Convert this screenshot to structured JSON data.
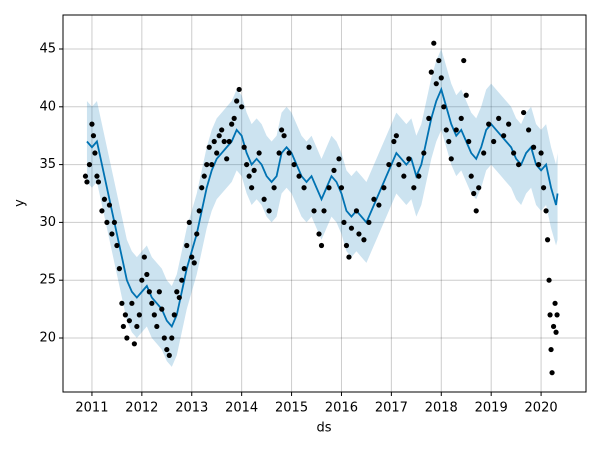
{
  "chart_data": {
    "type": "forecast",
    "xlabel": "ds",
    "ylabel": "y",
    "xlim": [
      2010.42,
      2020.9
    ],
    "ylim": [
      15.33,
      47.94
    ],
    "xticks": [
      2011,
      2012,
      2013,
      2014,
      2015,
      2016,
      2017,
      2018,
      2019,
      2020
    ],
    "yticks": [
      20,
      25,
      30,
      35,
      40,
      45
    ],
    "grid": true,
    "series": [
      {
        "type": "band",
        "color": "#0072B2",
        "x": [
          2010.9,
          2011.0,
          2011.1,
          2011.2,
          2011.3,
          2011.4,
          2011.5,
          2011.6,
          2011.7,
          2011.8,
          2011.9,
          2012.0,
          2012.1,
          2012.2,
          2012.3,
          2012.4,
          2012.5,
          2012.6,
          2012.7,
          2012.8,
          2012.9,
          2013.0,
          2013.1,
          2013.2,
          2013.3,
          2013.4,
          2013.5,
          2013.6,
          2013.7,
          2013.8,
          2013.9,
          2014.0,
          2014.1,
          2014.2,
          2014.3,
          2014.4,
          2014.5,
          2014.6,
          2014.7,
          2014.8,
          2014.9,
          2015.0,
          2015.1,
          2015.2,
          2015.3,
          2015.4,
          2015.5,
          2015.6,
          2015.7,
          2015.8,
          2015.9,
          2016.0,
          2016.1,
          2016.2,
          2016.3,
          2016.4,
          2016.5,
          2016.6,
          2016.7,
          2016.8,
          2016.9,
          2017.0,
          2017.1,
          2017.2,
          2017.3,
          2017.4,
          2017.5,
          2017.6,
          2017.7,
          2017.8,
          2017.9,
          2018.0,
          2018.1,
          2018.2,
          2018.3,
          2018.4,
          2018.5,
          2018.6,
          2018.7,
          2018.8,
          2018.9,
          2019.0,
          2019.1,
          2019.2,
          2019.3,
          2019.4,
          2019.5,
          2019.6,
          2019.7,
          2019.8,
          2019.9,
          2020.0,
          2020.1,
          2020.2,
          2020.3,
          2020.33
        ],
        "lower": [
          33.5,
          33,
          33.5,
          31.5,
          29.5,
          27.5,
          25.5,
          23.5,
          21.5,
          20.5,
          20,
          20.5,
          21,
          20,
          19.5,
          19,
          18,
          17.5,
          18.5,
          20.5,
          22.5,
          24,
          25.5,
          27.5,
          29.5,
          31,
          32,
          32.5,
          33,
          33.5,
          34.5,
          34,
          32.5,
          31.5,
          32,
          31.5,
          30.5,
          30,
          30.5,
          32.5,
          33,
          32.5,
          31.5,
          30.5,
          30,
          30.5,
          29.5,
          28.5,
          29.5,
          30.5,
          30,
          29,
          27.5,
          27,
          27.5,
          27,
          26.5,
          27.5,
          28.5,
          29.5,
          30.5,
          31.5,
          32.5,
          32,
          31.5,
          32,
          30.5,
          31.5,
          33.5,
          35.5,
          37,
          38,
          36.5,
          35,
          34,
          34.5,
          33.5,
          32.5,
          32,
          33,
          34.5,
          35,
          34.5,
          34,
          33.5,
          33,
          32,
          31.5,
          32.5,
          33,
          31.5,
          31,
          31.5,
          29.5,
          28,
          28.5
        ],
        "upper": [
          40.5,
          40,
          40.5,
          38.5,
          36.5,
          34.5,
          32.5,
          30.5,
          28.5,
          27.5,
          27,
          27.5,
          28,
          27,
          26.5,
          26,
          25,
          24.5,
          25.5,
          27.5,
          29.5,
          31,
          32.5,
          34.5,
          36.5,
          38,
          39,
          39.5,
          40,
          40.5,
          41.5,
          41,
          39.5,
          38.5,
          39,
          38.5,
          37.5,
          37,
          37.5,
          39.5,
          40,
          39.5,
          38.5,
          37.5,
          37,
          37.5,
          36.5,
          35.5,
          36.5,
          37.5,
          37,
          36,
          34.5,
          34,
          34.5,
          34,
          33.5,
          34.5,
          35.5,
          36.5,
          37.5,
          38.5,
          39.5,
          39,
          38.5,
          39,
          37.5,
          38.5,
          40.5,
          42.5,
          44,
          45,
          43.5,
          42,
          41,
          41.5,
          40.5,
          39.5,
          39,
          40,
          41.5,
          42,
          41.5,
          41,
          40.5,
          40,
          39,
          38.5,
          39.5,
          40,
          38.5,
          38,
          38.5,
          36.5,
          35,
          36
        ]
      },
      {
        "type": "line",
        "color": "#0072B2",
        "x": [
          2010.9,
          2011.0,
          2011.1,
          2011.2,
          2011.3,
          2011.4,
          2011.5,
          2011.6,
          2011.7,
          2011.8,
          2011.9,
          2012.0,
          2012.1,
          2012.2,
          2012.3,
          2012.4,
          2012.5,
          2012.6,
          2012.7,
          2012.8,
          2012.9,
          2013.0,
          2013.1,
          2013.2,
          2013.3,
          2013.4,
          2013.5,
          2013.6,
          2013.7,
          2013.8,
          2013.9,
          2014.0,
          2014.1,
          2014.2,
          2014.3,
          2014.4,
          2014.5,
          2014.6,
          2014.7,
          2014.8,
          2014.9,
          2015.0,
          2015.1,
          2015.2,
          2015.3,
          2015.4,
          2015.5,
          2015.6,
          2015.7,
          2015.8,
          2015.9,
          2016.0,
          2016.1,
          2016.2,
          2016.3,
          2016.4,
          2016.5,
          2016.6,
          2016.7,
          2016.8,
          2016.9,
          2017.0,
          2017.1,
          2017.2,
          2017.3,
          2017.4,
          2017.5,
          2017.6,
          2017.7,
          2017.8,
          2017.9,
          2018.0,
          2018.1,
          2018.2,
          2018.3,
          2018.4,
          2018.5,
          2018.6,
          2018.7,
          2018.8,
          2018.9,
          2019.0,
          2019.1,
          2019.2,
          2019.3,
          2019.4,
          2019.5,
          2019.6,
          2019.7,
          2019.8,
          2019.9,
          2020.0,
          2020.1,
          2020.2,
          2020.3,
          2020.33
        ],
        "values": [
          37,
          36.5,
          37,
          35,
          33,
          31,
          29,
          27,
          25,
          24,
          23.5,
          24,
          24.5,
          23.5,
          23,
          22.5,
          21.5,
          21,
          22,
          24,
          26,
          27.5,
          29,
          31,
          33,
          34.5,
          35.5,
          36,
          36.5,
          37,
          38,
          37.5,
          36,
          35,
          35.5,
          35,
          34,
          33.5,
          34,
          36,
          36.5,
          36,
          35,
          34,
          33.5,
          34,
          33,
          32,
          33,
          34,
          33.5,
          32.5,
          31,
          30.5,
          31,
          30.5,
          30,
          31,
          32,
          33,
          34,
          35,
          36,
          35.5,
          35,
          35.5,
          34,
          35,
          37,
          39,
          40.5,
          41.5,
          40,
          38.5,
          37.5,
          38,
          37,
          36,
          35.5,
          36.5,
          38,
          38.5,
          38,
          37.5,
          37,
          36.5,
          35.5,
          35,
          36,
          36.5,
          35,
          34.5,
          35,
          33,
          31.5,
          32.5
        ]
      },
      {
        "type": "scatter",
        "color": "#000000",
        "x": [
          2010.87,
          2010.9,
          2010.95,
          2011.0,
          2011.03,
          2011.06,
          2011.1,
          2011.13,
          2011.2,
          2011.25,
          2011.3,
          2011.35,
          2011.4,
          2011.45,
          2011.5,
          2011.55,
          2011.6,
          2011.63,
          2011.67,
          2011.7,
          2011.75,
          2011.8,
          2011.85,
          2011.9,
          2011.95,
          2012.0,
          2012.05,
          2012.1,
          2012.15,
          2012.2,
          2012.25,
          2012.3,
          2012.35,
          2012.4,
          2012.45,
          2012.5,
          2012.55,
          2012.6,
          2012.65,
          2012.7,
          2012.75,
          2012.8,
          2012.85,
          2012.9,
          2012.95,
          2013.0,
          2013.05,
          2013.1,
          2013.15,
          2013.2,
          2013.25,
          2013.3,
          2013.35,
          2013.4,
          2013.45,
          2013.5,
          2013.55,
          2013.6,
          2013.65,
          2013.7,
          2013.75,
          2013.8,
          2013.85,
          2013.9,
          2013.95,
          2014.0,
          2014.05,
          2014.1,
          2014.15,
          2014.2,
          2014.25,
          2014.35,
          2014.45,
          2014.55,
          2014.65,
          2014.75,
          2014.8,
          2014.85,
          2014.95,
          2015.05,
          2015.15,
          2015.25,
          2015.35,
          2015.45,
          2015.55,
          2015.6,
          2015.65,
          2015.75,
          2015.85,
          2015.95,
          2016.0,
          2016.05,
          2016.1,
          2016.15,
          2016.2,
          2016.3,
          2016.35,
          2016.45,
          2016.55,
          2016.65,
          2016.75,
          2016.85,
          2016.95,
          2017.05,
          2017.1,
          2017.15,
          2017.25,
          2017.35,
          2017.45,
          2017.55,
          2017.65,
          2017.75,
          2017.8,
          2017.85,
          2017.9,
          2017.95,
          2018.0,
          2018.05,
          2018.1,
          2018.15,
          2018.2,
          2018.3,
          2018.4,
          2018.45,
          2018.5,
          2018.55,
          2018.6,
          2018.65,
          2018.7,
          2018.75,
          2018.85,
          2018.95,
          2019.05,
          2019.15,
          2019.25,
          2019.35,
          2019.45,
          2019.55,
          2019.65,
          2019.75,
          2019.85,
          2019.95,
          2020.0,
          2020.05,
          2020.1,
          2020.13,
          2020.16,
          2020.18,
          2020.2,
          2020.22,
          2020.25,
          2020.28,
          2020.3,
          2020.32
        ],
        "values": [
          34,
          33.5,
          35,
          38.5,
          37.5,
          36,
          34,
          33.5,
          31,
          32,
          30,
          31.5,
          29,
          30,
          28,
          26,
          23,
          21,
          22,
          20,
          21.5,
          23,
          19.5,
          21,
          22,
          25,
          27,
          25.5,
          24,
          23,
          22,
          21,
          24,
          22.5,
          20,
          19,
          18.5,
          20,
          22,
          24,
          23.5,
          25,
          26,
          28,
          30,
          27,
          26.5,
          29,
          31,
          33,
          34,
          35,
          36.5,
          35,
          37,
          36,
          37.5,
          38,
          37,
          35.5,
          37,
          38.5,
          39,
          40.5,
          41.5,
          40,
          36.5,
          35,
          34,
          33,
          34.5,
          36,
          32,
          31,
          33,
          36,
          38,
          37.5,
          36,
          35,
          34,
          33,
          36.5,
          31,
          29,
          28,
          31,
          33,
          34.5,
          35.5,
          33,
          30,
          28,
          27,
          29.5,
          31,
          29,
          28.5,
          30,
          32,
          31.5,
          33,
          35,
          37,
          37.5,
          35,
          34,
          35.5,
          33,
          34,
          36,
          39,
          43,
          45.5,
          42,
          44,
          42.5,
          40,
          38,
          37,
          35.5,
          38,
          39,
          44,
          41,
          37,
          34,
          32.5,
          31,
          33,
          36,
          38.5,
          37,
          39,
          37.5,
          38.5,
          36,
          35,
          39.5,
          38,
          36.5,
          35,
          36,
          33,
          31,
          28.5,
          25,
          22,
          19,
          17,
          21,
          23,
          20.5,
          22
        ]
      }
    ]
  }
}
